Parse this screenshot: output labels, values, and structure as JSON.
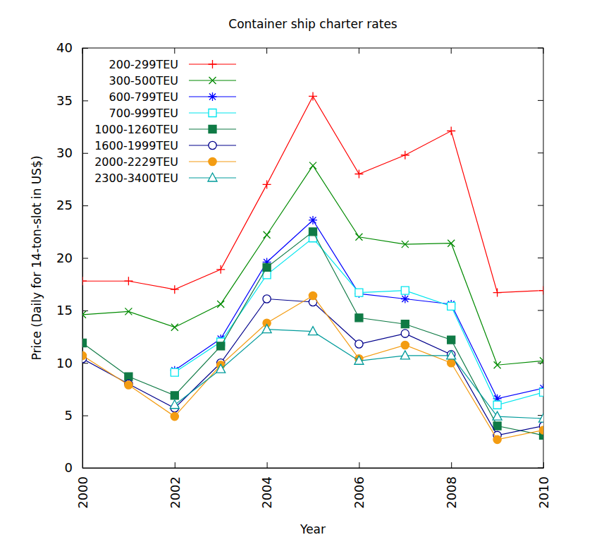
{
  "chart_data": {
    "type": "line",
    "title": "Container ship charter rates",
    "x_label": "Year",
    "y_label": "Price (Daily for 14-ton-slot in US$)",
    "x": [
      2000,
      2001,
      2002,
      2003,
      2004,
      2005,
      2006,
      2007,
      2008,
      2009,
      2010
    ],
    "xlim": [
      2000,
      2010
    ],
    "xticks": [
      2000,
      2002,
      2004,
      2006,
      2008,
      2010
    ],
    "ylim": [
      0,
      40
    ],
    "yticks": [
      0,
      5,
      10,
      15,
      20,
      25,
      30,
      35,
      40
    ],
    "legend": "upper left",
    "series": [
      {
        "name": "200-299TEU",
        "color": "#ff0000",
        "marker": "plus",
        "values": [
          17.8,
          17.8,
          17.0,
          18.9,
          27.0,
          35.4,
          28.0,
          29.8,
          32.1,
          16.7,
          16.9
        ]
      },
      {
        "name": "300-500TEU",
        "color": "#008a00",
        "marker": "x",
        "values": [
          14.6,
          14.9,
          13.4,
          15.6,
          22.2,
          28.8,
          22.0,
          21.3,
          21.4,
          9.8,
          10.2
        ]
      },
      {
        "name": "600-799TEU",
        "color": "#0000ff",
        "marker": "star",
        "values": [
          null,
          null,
          9.3,
          12.3,
          19.6,
          23.6,
          16.6,
          16.1,
          15.6,
          6.6,
          7.6
        ]
      },
      {
        "name": "700-999TEU",
        "color": "#00e5ee",
        "marker": "square-open",
        "values": [
          null,
          null,
          9.1,
          12.0,
          18.4,
          21.9,
          16.7,
          16.9,
          15.4,
          6.0,
          7.2
        ]
      },
      {
        "name": "1000-1260TEU",
        "color": "#0f7a45",
        "marker": "square",
        "values": [
          11.9,
          8.7,
          6.9,
          11.6,
          19.1,
          22.5,
          14.3,
          13.7,
          12.2,
          4.0,
          3.1
        ]
      },
      {
        "name": "1600-1999TEU",
        "color": "#00008b",
        "marker": "circle-open",
        "values": [
          10.4,
          8.0,
          5.7,
          10.0,
          16.1,
          15.8,
          11.8,
          12.8,
          10.8,
          3.1,
          4.0
        ]
      },
      {
        "name": "2000-2229TEU",
        "color": "#f39c12",
        "marker": "circle",
        "values": [
          10.7,
          7.9,
          4.9,
          9.8,
          13.8,
          16.4,
          10.4,
          11.7,
          10.0,
          2.7,
          3.6
        ]
      },
      {
        "name": "2300-3400TEU",
        "color": "#009b9b",
        "marker": "triangle-open",
        "values": [
          null,
          null,
          6.0,
          9.4,
          13.2,
          13.0,
          10.2,
          10.7,
          10.7,
          4.9,
          4.7
        ]
      }
    ]
  }
}
